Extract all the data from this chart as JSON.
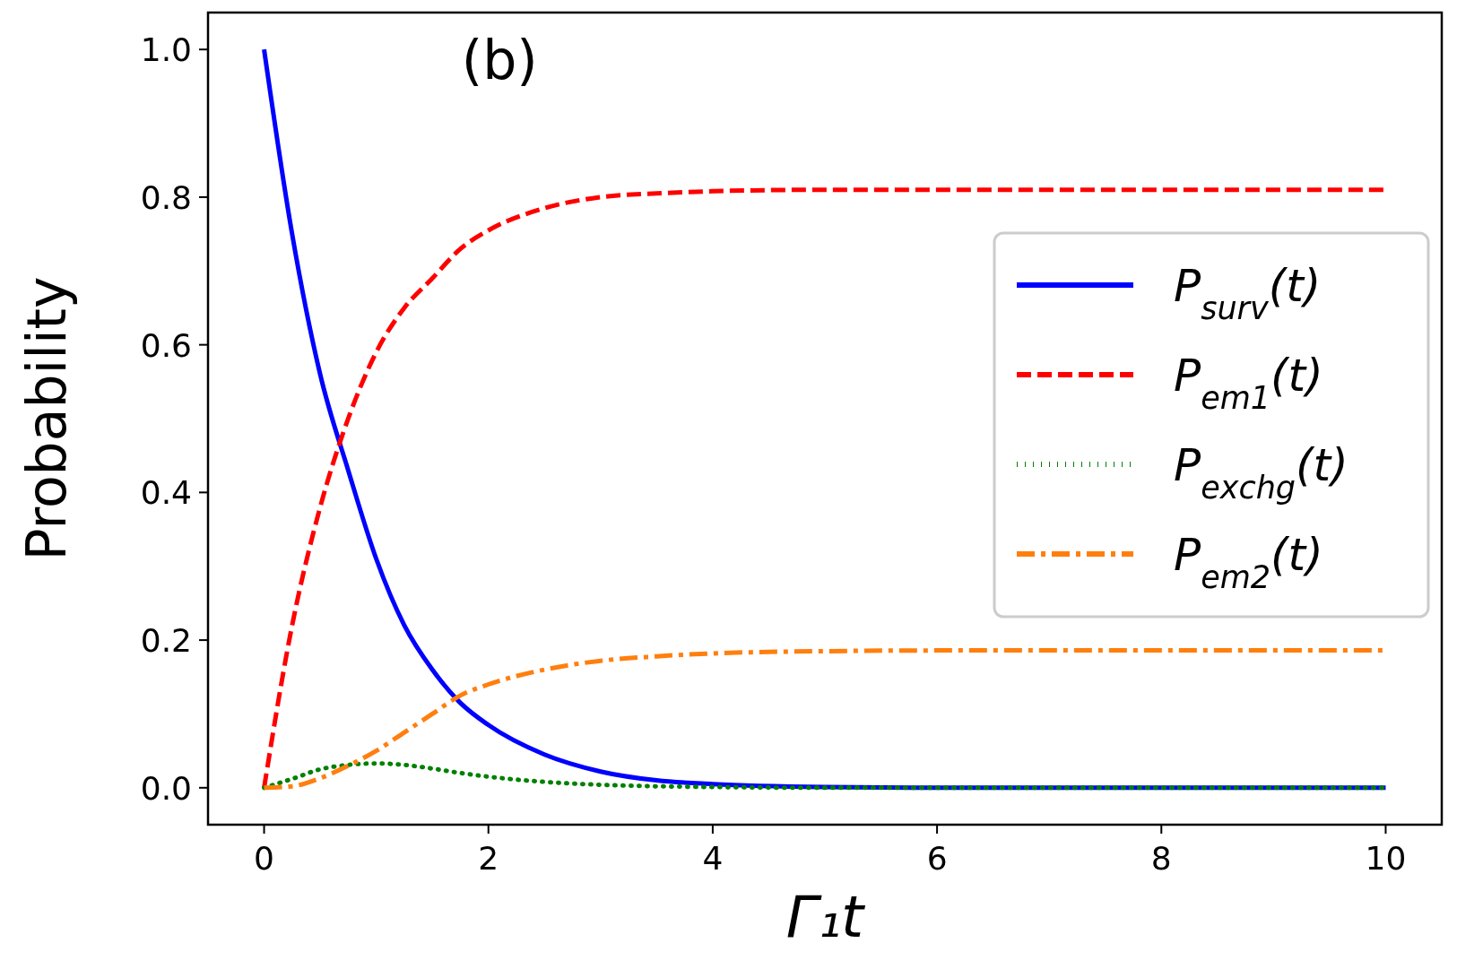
{
  "chart_data": {
    "type": "line",
    "xlabel": "Γ₁t",
    "ylabel": "Probability",
    "annotations": [
      "(b)"
    ],
    "x": [
      0,
      0.25,
      0.5,
      0.75,
      1,
      1.25,
      1.5,
      1.75,
      2,
      2.5,
      3,
      3.5,
      4,
      5,
      6,
      8,
      10
    ],
    "xlim": [
      -0.5,
      10.5
    ],
    "ylim": [
      -0.05,
      1.05
    ],
    "xticks": [
      0,
      2,
      4,
      6,
      8,
      10
    ],
    "yticks": [
      {
        "value": 0,
        "label": "0.0"
      },
      {
        "value": 0.2,
        "label": "0.2"
      },
      {
        "value": 0.4,
        "label": "0.4"
      },
      {
        "value": 0.6,
        "label": "0.6"
      },
      {
        "value": 0.8,
        "label": "0.8"
      },
      {
        "value": 1,
        "label": "1.0"
      }
    ],
    "legend": "right",
    "grid": false,
    "marker": "none",
    "series": [
      {
        "name": "P$_{surv}$(t)",
        "color": "#0000ff",
        "line_style": "solid",
        "values": [
          1.0,
          0.75,
          0.56,
          0.43,
          0.31,
          0.22,
          0.16,
          0.115,
          0.085,
          0.045,
          0.022,
          0.01,
          0.005,
          0.001,
          0,
          0,
          0
        ]
      },
      {
        "name": "P$_{em1}$(t)",
        "color": "#ff0000",
        "line_style": "dashed",
        "values": [
          0,
          0.22,
          0.38,
          0.5,
          0.59,
          0.65,
          0.69,
          0.73,
          0.755,
          0.785,
          0.8,
          0.805,
          0.808,
          0.81,
          0.81,
          0.81,
          0.81
        ]
      },
      {
        "name": "P$_{exchg}$(t)",
        "color": "#008000",
        "line_style": "dotted",
        "values": [
          0,
          0.012,
          0.025,
          0.031,
          0.033,
          0.031,
          0.026,
          0.02,
          0.015,
          0.008,
          0.004,
          0.002,
          0.001,
          0,
          0,
          0,
          0
        ]
      },
      {
        "name": "P$_{em2}$(t)",
        "color": "#ff7f0e",
        "line_style": "dashdot",
        "values": [
          0,
          0.002,
          0.013,
          0.03,
          0.05,
          0.075,
          0.1,
          0.125,
          0.14,
          0.16,
          0.172,
          0.178,
          0.182,
          0.185,
          0.186,
          0.186,
          0.186
        ]
      }
    ]
  }
}
